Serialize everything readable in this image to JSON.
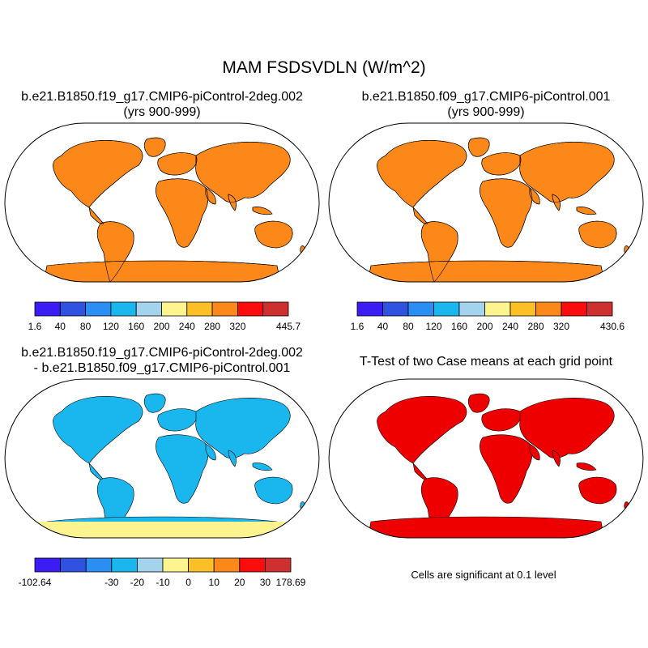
{
  "title": "MAM FSDSVDLN (W/m^2)",
  "panels": [
    {
      "title_line1": "b.e21.B1850.f19_g17.CMIP6-piControl-2deg.002",
      "title_line2": "(yrs 900-999)",
      "colorbar": {
        "colors": [
          "#3b1cf5",
          "#2f52e0",
          "#2a8ef2",
          "#1ab7ee",
          "#a4d3ee",
          "#fdf48f",
          "#fbc025",
          "#fb8818",
          "#fb0d0d",
          "#ce3030"
        ],
        "labels": [
          "1.6",
          "40",
          "80",
          "120",
          "160",
          "200",
          "240",
          "280",
          "320",
          "445.7"
        ]
      }
    },
    {
      "title_line1": "b.e21.B1850.f09_g17.CMIP6-piControl.001",
      "title_line2": "(yrs 900-999)",
      "colorbar": {
        "colors": [
          "#3b1cf5",
          "#2f52e0",
          "#2a8ef2",
          "#1ab7ee",
          "#a4d3ee",
          "#fdf48f",
          "#fbc025",
          "#fb8818",
          "#fb0d0d",
          "#ce3030"
        ],
        "labels": [
          "1.6",
          "40",
          "80",
          "120",
          "160",
          "200",
          "240",
          "280",
          "320",
          "430.6"
        ]
      }
    },
    {
      "title_line1": "b.e21.B1850.f19_g17.CMIP6-piControl-2deg.002",
      "title_line2": "- b.e21.B1850.f09_g17.CMIP6-piControl.001",
      "colorbar": {
        "colors": [
          "#3b1cf5",
          "#2f52e0",
          "#2a8ef2",
          "#1ab7ee",
          "#a4d3ee",
          "#fdf48f",
          "#fbc025",
          "#fb8818",
          "#fb0d0d",
          "#ce3030"
        ],
        "labels": [
          "-102.64",
          "-30",
          "-20",
          "-10",
          "0",
          "10",
          "20",
          "30",
          "178.69"
        ]
      }
    },
    {
      "title_line1": "T-Test of two Case means at each grid point",
      "footnote": "Cells are significant at 0.1 level",
      "significance_color": "#ee0000"
    }
  ]
}
